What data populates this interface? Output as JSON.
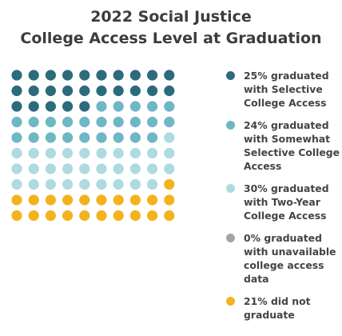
{
  "chart_data": {
    "type": "waffle",
    "title_lines": [
      "2022 Social Justice",
      "College Access Level at Graduation"
    ],
    "grid": {
      "rows": 10,
      "cols": 10
    },
    "categories": [
      {
        "label": "25% graduated\nwith Selective\nCollege Access",
        "value": 25,
        "color": "#2c6b7c"
      },
      {
        "label": "24% graduated\nwith Somewhat\nSelective College\nAccess",
        "value": 24,
        "color": "#6eb7c4"
      },
      {
        "label": "30% graduated\nwith Two-Year\nCollege Access",
        "value": 30,
        "color": "#addbdf"
      },
      {
        "label": "0% graduated\nwith unavailable\ncollege access\ndata",
        "value": 0,
        "color": "#a5a5a5"
      },
      {
        "label": "21% did not\ngraduate",
        "value": 21,
        "color": "#f3b21f"
      }
    ]
  }
}
